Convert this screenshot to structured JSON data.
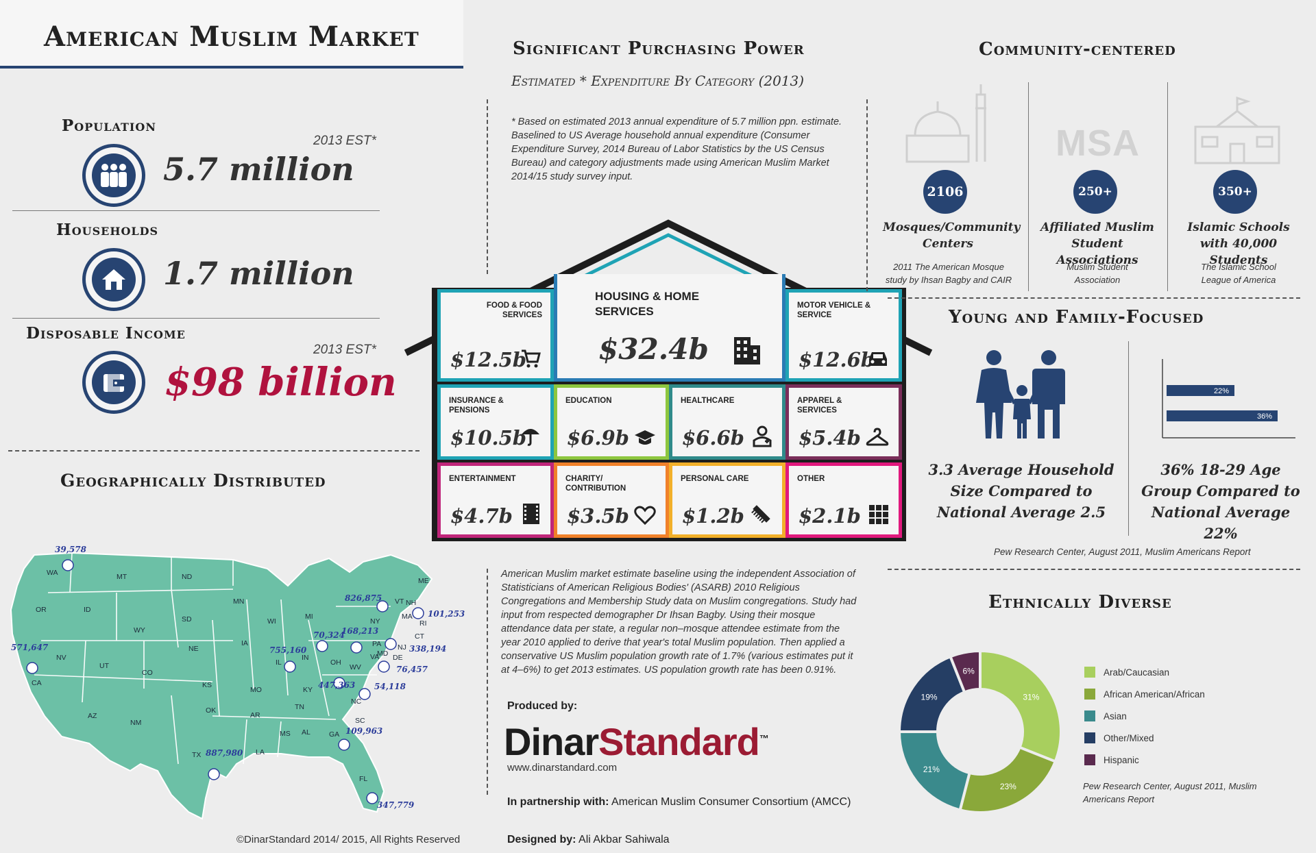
{
  "title": "American Muslim Market",
  "stats": {
    "population": {
      "label": "Population",
      "value": "5.7 million",
      "est": "2013 EST*"
    },
    "households": {
      "label": "Households",
      "value": "1.7 million"
    },
    "income": {
      "label": "Disposable Income",
      "value": "$98 billion",
      "est": "2013 EST*"
    }
  },
  "geo": {
    "title": "Geographically Distributed",
    "copyright": "©DinarStandard 2014/ 2015, All Rights Reserved",
    "states": [
      "WA",
      "MT",
      "ND",
      "MN",
      "OR",
      "ID",
      "SD",
      "WI",
      "MI",
      "WY",
      "NE",
      "IA",
      "NV",
      "UT",
      "CO",
      "KS",
      "MO",
      "IL",
      "IN",
      "OH",
      "CA",
      "AZ",
      "NM",
      "OK",
      "AR",
      "TN",
      "KY",
      "WV",
      "VA",
      "NC",
      "SC",
      "TX",
      "LA",
      "MS",
      "AL",
      "GA",
      "FL",
      "PA",
      "NY",
      "VT",
      "NH",
      "ME",
      "MA",
      "CT",
      "RI",
      "NJ",
      "DE",
      "MD"
    ],
    "figures": [
      {
        "state": "WA",
        "value": "39,578"
      },
      {
        "state": "CA",
        "value": "571,647"
      },
      {
        "state": "TX",
        "value": "887,980"
      },
      {
        "state": "IL",
        "value": "755,160"
      },
      {
        "state": "MI",
        "value": "70,324"
      },
      {
        "state": "OH",
        "value": "168,213"
      },
      {
        "state": "KY",
        "value": "447,363"
      },
      {
        "state": "NY",
        "value": "826,875"
      },
      {
        "state": "MA",
        "value": "101,253"
      },
      {
        "state": "NJ",
        "value": "338,194"
      },
      {
        "state": "MD",
        "value": "76,457"
      },
      {
        "state": "VA",
        "value": "54,118"
      },
      {
        "state": "GA",
        "value": "109,963"
      },
      {
        "state": "FL",
        "value": "347,779"
      }
    ]
  },
  "purchasing": {
    "title": "Significant Purchasing Power",
    "subtitle": "Estimated * Expenditure By Category (2013)",
    "note": "* Based on estimated 2013 annual expenditure of 5.7 million ppn. estimate. Baselined to US Average household annual expenditure (Consumer Expenditure Survey, 2014 Bureau of Labor Statistics by the US Census Bureau) and category adjustments made using American Muslim Market 2014/15 study survey input.",
    "categories": [
      {
        "label": "Food & Food Services",
        "amount": "$12.5b",
        "icon": "cart-icon",
        "color": "#1fa3b5"
      },
      {
        "label": "Housing & Home Services",
        "amount": "$32.4b",
        "icon": "building-icon",
        "color": "#2a7bb4"
      },
      {
        "label": "Motor Vehicle & Service",
        "amount": "$12.6b",
        "icon": "car-icon",
        "color": "#1fa3b5"
      },
      {
        "label": "Insurance & Pensions",
        "amount": "$10.5b",
        "icon": "umbrella-icon",
        "color": "#1fa3b5"
      },
      {
        "label": "Education",
        "amount": "$6.9b",
        "icon": "graduation-cap-icon",
        "color": "#8dc63f"
      },
      {
        "label": "Healthcare",
        "amount": "$6.6b",
        "icon": "doctor-icon",
        "color": "#2f8a8a"
      },
      {
        "label": "Apparel & Services",
        "amount": "$5.4b",
        "icon": "hanger-icon",
        "color": "#7a2e5a"
      },
      {
        "label": "Entertainment",
        "amount": "$4.7b",
        "icon": "film-icon",
        "color": "#c0267a"
      },
      {
        "label": "Charity/ Contribution",
        "amount": "$3.5b",
        "icon": "heart-icon",
        "color": "#f0812a"
      },
      {
        "label": "Personal Care",
        "amount": "$1.2b",
        "icon": "comb-icon",
        "color": "#f2b02a"
      },
      {
        "label": "Other",
        "amount": "$2.1b",
        "icon": "grid-icon",
        "color": "#e0197d"
      }
    ],
    "methodology": "American Muslim market estimate baseline using the independent Association of Statisticians of American Religious Bodies' (ASARB) 2010 Religious Congregations and Membership Study data on Muslim congregations. Study had input from respected demographer Dr Ihsan Bagby. Using their mosque attendance data per state, a regular non–mosque attendee estimate from the year 2010 applied to derive that year's total Muslim population. Then applied a conservative US Muslim population growth rate of 1.7% (various estimates put it at 4–6%) to get 2013 estimates. US population growth rate has been 0.91%."
  },
  "credits": {
    "produced_label": "Produced by:",
    "brand_a": "Dinar",
    "brand_b": "Standard",
    "tm": "™",
    "url": "www.dinarstandard.com",
    "partner_label": "In partnership with:",
    "partner": "American Muslim Consumer Consortium (AMCC)",
    "designer_label": "Designed by:",
    "designer": "Ali Akbar Sahiwala"
  },
  "community": {
    "title": "Community-centered",
    "items": [
      {
        "icon": "mosque-icon",
        "count": "2106",
        "label": "Mosques/Community Centers",
        "source": "2011 The American Mosque study by Ihsan Bagby and CAIR"
      },
      {
        "icon": "msa-text",
        "icon_text": "MSA",
        "count": "250+",
        "label": "Affiliated Muslim Student Associations",
        "source": "Muslim Student Association"
      },
      {
        "icon": "school-icon",
        "count": "350+",
        "label": "Islamic Schools with 40,000 Students",
        "source": "The Islamic School League of America"
      }
    ]
  },
  "young": {
    "title": "Young and Family-Focused",
    "household_text": "3.3 Average Household Size Compared to National Average 2.5",
    "age_text": "36% 18-29 Age Group Compared to National Average 22%",
    "source": "Pew Research Center, August 2011, Muslim Americans Report",
    "chart_data": {
      "type": "bar",
      "orientation": "horizontal",
      "values": [
        22,
        36
      ],
      "value_labels": [
        "22%",
        "36%"
      ]
    }
  },
  "ethnic": {
    "title": "Ethnically Diverse",
    "source": "Pew Research Center, August 2011, Muslim Americans Report",
    "chart_data": {
      "type": "pie",
      "donut": true,
      "series": [
        {
          "name": "Arab/Caucasian",
          "value": 31,
          "label": "31%",
          "color": "#a8cf5e"
        },
        {
          "name": "African American/African",
          "value": 23,
          "label": "23%",
          "color": "#8aa83a"
        },
        {
          "name": "Asian",
          "value": 21,
          "label": "21%",
          "color": "#3a8a8c"
        },
        {
          "name": "Other/Mixed",
          "value": 19,
          "label": "19%",
          "color": "#253e64"
        },
        {
          "name": "Hispanic",
          "value": 6,
          "label": "6%",
          "color": "#5a2a4e"
        }
      ]
    }
  }
}
